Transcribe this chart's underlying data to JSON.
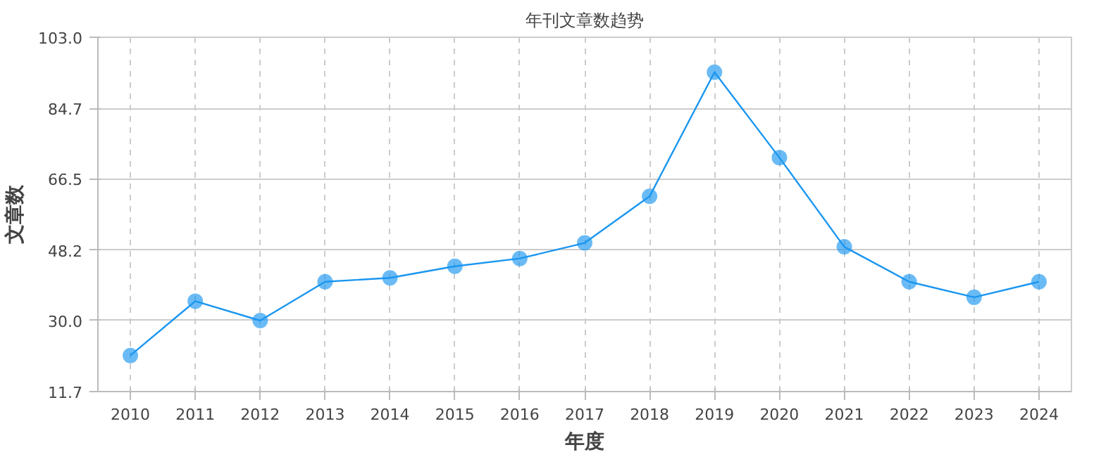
{
  "chart_data": {
    "type": "line",
    "title": "年刊文章数趋势",
    "xlabel": "年度",
    "ylabel": "文章数",
    "categories": [
      "2010",
      "2011",
      "2012",
      "2013",
      "2014",
      "2015",
      "2016",
      "2017",
      "2018",
      "2019",
      "2020",
      "2021",
      "2022",
      "2023",
      "2024"
    ],
    "series": [
      {
        "color": "#1a96f0",
        "values": [
          21,
          35,
          30,
          40,
          41,
          44,
          46,
          50,
          62,
          94,
          72,
          49,
          40,
          36,
          40
        ]
      }
    ],
    "ylim": [
      11.7,
      103.0
    ],
    "yticks": [
      {
        "value": 11.7,
        "label": "11.7"
      },
      {
        "value": 30.0,
        "label": "30.0"
      },
      {
        "value": 48.2,
        "label": "48.2"
      },
      {
        "value": 66.5,
        "label": "66.5"
      },
      {
        "value": 84.7,
        "label": "84.7"
      },
      {
        "value": 103.0,
        "label": "103.0"
      }
    ],
    "grid": true,
    "marker": "circle",
    "line_style": "solid"
  }
}
